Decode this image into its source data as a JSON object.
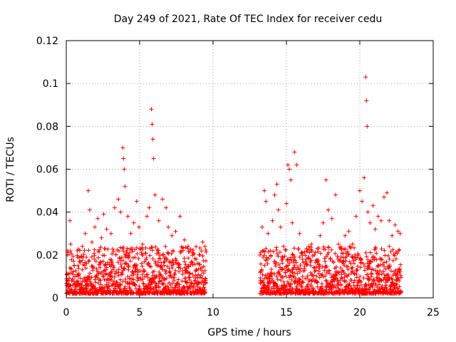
{
  "chart_data": {
    "type": "scatter",
    "title": "Day 249 of 2021, Rate Of TEC Index for receiver cedu",
    "xlabel": "GPS time / hours",
    "ylabel": "ROTI / TECUs",
    "xlim": [
      0,
      25
    ],
    "ylim": [
      0,
      0.12
    ],
    "x_ticks": [
      0,
      5,
      10,
      15,
      20,
      25
    ],
    "x_tick_labels": [
      "0",
      "5",
      "10",
      "15",
      "20",
      "25"
    ],
    "y_ticks": [
      0,
      0.02,
      0.04,
      0.06,
      0.08,
      0.1,
      0.12
    ],
    "y_tick_labels": [
      "0",
      "0.02",
      "0.04",
      "0.06",
      "0.08",
      "0.1",
      "0.12"
    ],
    "grid": true,
    "marker": "+",
    "marker_color": "#ff0000",
    "series": [
      {
        "x": [
          0.1,
          0.25,
          0.3,
          0.55,
          0.75,
          0.9,
          1.1,
          1.3,
          1.5,
          1.6,
          1.75,
          1.95,
          2.15,
          2.4,
          2.55,
          2.75,
          3.05,
          3.3,
          3.55,
          3.7,
          3.85,
          3.9,
          3.95,
          4.0,
          4.2,
          4.4,
          4.6,
          4.8,
          4.95,
          5.2,
          5.5,
          5.65,
          5.8,
          5.85,
          5.9,
          5.95,
          6.05,
          6.3,
          6.55,
          6.8,
          6.95,
          7.2,
          7.45,
          7.75,
          8.05,
          8.3,
          8.6,
          8.85,
          9.1,
          9.3,
          9.45,
          13.2,
          13.35,
          13.5,
          13.6,
          13.75,
          13.9,
          14.05,
          14.2,
          14.35,
          14.45,
          14.6,
          14.8,
          15.0,
          15.1,
          15.2,
          15.3,
          15.4,
          15.55,
          15.7,
          15.9,
          16.1,
          16.3,
          16.5,
          16.7,
          16.9,
          17.1,
          17.3,
          17.5,
          17.7,
          17.85,
          18.1,
          18.35,
          18.55,
          18.75,
          19.0,
          19.25,
          19.5,
          19.75,
          20.0,
          20.15,
          20.3,
          20.4,
          20.45,
          20.5,
          20.55,
          20.7,
          20.9,
          21.05,
          21.25,
          21.45,
          21.65,
          21.85,
          22.0,
          22.2,
          22.4,
          22.6,
          22.75
        ],
        "y": [
          0.02,
          0.036,
          0.025,
          0.015,
          0.022,
          0.017,
          0.024,
          0.03,
          0.05,
          0.041,
          0.026,
          0.033,
          0.037,
          0.028,
          0.039,
          0.032,
          0.03,
          0.042,
          0.046,
          0.04,
          0.07,
          0.065,
          0.06,
          0.052,
          0.038,
          0.03,
          0.035,
          0.045,
          0.033,
          0.025,
          0.038,
          0.042,
          0.088,
          0.081,
          0.074,
          0.065,
          0.048,
          0.036,
          0.046,
          0.042,
          0.033,
          0.029,
          0.031,
          0.038,
          0.027,
          0.024,
          0.021,
          0.018,
          0.02,
          0.026,
          0.024,
          0.02,
          0.033,
          0.05,
          0.045,
          0.03,
          0.022,
          0.036,
          0.048,
          0.053,
          0.041,
          0.033,
          0.024,
          0.044,
          0.062,
          0.06,
          0.055,
          0.035,
          0.068,
          0.062,
          0.03,
          0.021,
          0.017,
          0.019,
          0.025,
          0.02,
          0.023,
          0.029,
          0.035,
          0.055,
          0.041,
          0.037,
          0.048,
          0.025,
          0.023,
          0.029,
          0.031,
          0.025,
          0.038,
          0.05,
          0.045,
          0.056,
          0.103,
          0.092,
          0.08,
          0.04,
          0.035,
          0.043,
          0.032,
          0.038,
          0.036,
          0.047,
          0.049,
          0.036,
          0.029,
          0.034,
          0.031,
          0.03
        ]
      }
    ],
    "segments": [
      {
        "from": 0.0,
        "to": 9.5
      },
      {
        "from": 13.2,
        "to": 22.8
      }
    ]
  }
}
